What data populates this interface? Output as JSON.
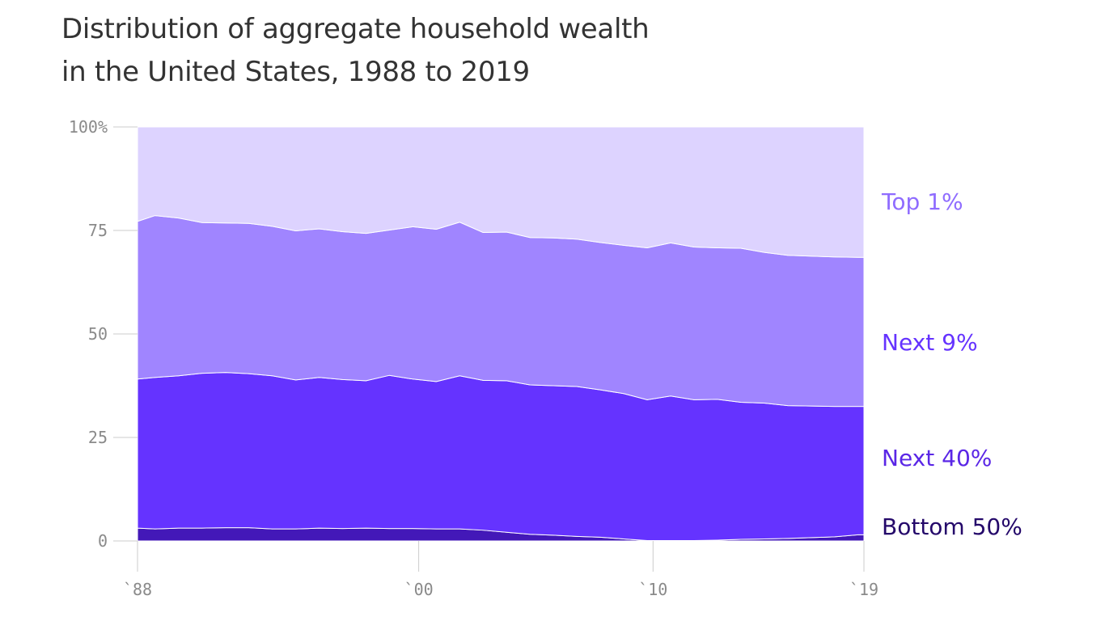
{
  "title_lines": [
    "Distribution of aggregate household wealth",
    "in the United States, 1988 to 2019"
  ],
  "chart_data": {
    "type": "area",
    "stacked": true,
    "title": "Distribution of aggregate household wealth in the United States, 1988 to 2019",
    "xlabel": "",
    "ylabel": "",
    "xlim": [
      1988,
      2019
    ],
    "ylim": [
      0,
      100
    ],
    "x_ticks": [
      {
        "value": 1988,
        "label": "`88"
      },
      {
        "value": 2000,
        "label": "`00"
      },
      {
        "value": 2010,
        "label": "`10"
      },
      {
        "value": 2019,
        "label": "`19"
      }
    ],
    "y_ticks": [
      {
        "value": 0,
        "label": "0"
      },
      {
        "value": 25,
        "label": "25"
      },
      {
        "value": 50,
        "label": "50"
      },
      {
        "value": 75,
        "label": "75"
      },
      {
        "value": 100,
        "label": "100%"
      }
    ],
    "x": [
      1988,
      1988.75,
      1989.75,
      1990.75,
      1991.75,
      1992.75,
      1993.75,
      1994.75,
      1995.75,
      1996.75,
      1997.75,
      1998.75,
      1999.75,
      2000.75,
      2001.75,
      2002.75,
      2003.75,
      2004.75,
      2005.75,
      2006.75,
      2007.75,
      2008.75,
      2009.75,
      2010.75,
      2011.75,
      2012.75,
      2013.75,
      2014.75,
      2015.75,
      2016.75,
      2017.75,
      2018.75,
      2019
    ],
    "series": [
      {
        "name": "Bottom 50%",
        "color": "#4318b8",
        "label_color": "#24086a",
        "values": [
          3.1,
          2.9,
          3.1,
          3.1,
          3.2,
          3.2,
          2.9,
          2.9,
          3.1,
          3.0,
          3.1,
          3.0,
          3.0,
          2.9,
          2.9,
          2.6,
          2.1,
          1.6,
          1.4,
          1.1,
          0.9,
          0.5,
          0.1,
          0.1,
          0.1,
          0.2,
          0.4,
          0.5,
          0.6,
          0.8,
          1.0,
          1.5,
          1.5
        ]
      },
      {
        "name": "Next 40%",
        "color": "#6533ff",
        "label_color": "#5a26e6",
        "values": [
          36.0,
          36.6,
          36.8,
          37.4,
          37.5,
          37.2,
          37.0,
          36.0,
          36.4,
          36.0,
          35.6,
          37.0,
          36.1,
          35.6,
          37.0,
          36.2,
          36.6,
          36.1,
          36.1,
          36.2,
          35.6,
          35.1,
          34.0,
          34.9,
          34.0,
          34.0,
          33.1,
          32.8,
          32.1,
          31.8,
          31.5,
          31.0,
          31.0
        ]
      },
      {
        "name": "Next 9%",
        "color": "#a085ff",
        "label_color": "#6533ff",
        "values": [
          38.1,
          39.1,
          38.1,
          36.4,
          36.1,
          36.3,
          36.1,
          36.0,
          35.9,
          35.7,
          35.6,
          35.1,
          36.8,
          36.8,
          37.1,
          35.7,
          35.9,
          35.6,
          35.7,
          35.6,
          35.6,
          35.8,
          36.7,
          37.0,
          36.9,
          36.6,
          37.2,
          36.4,
          36.3,
          36.2,
          36.1,
          36.0,
          36.0
        ]
      },
      {
        "name": "Top 1%",
        "color": "#ddd3ff",
        "label_color": "#8f6cff",
        "values": [
          22.8,
          21.4,
          22.0,
          23.1,
          23.2,
          23.3,
          24.0,
          25.1,
          24.6,
          25.3,
          25.7,
          24.9,
          24.1,
          24.7,
          23.0,
          25.5,
          25.4,
          26.7,
          26.8,
          27.1,
          27.9,
          28.6,
          29.2,
          28.0,
          29.0,
          29.2,
          29.3,
          30.3,
          31.0,
          31.2,
          31.4,
          31.5,
          31.5
        ]
      }
    ]
  }
}
